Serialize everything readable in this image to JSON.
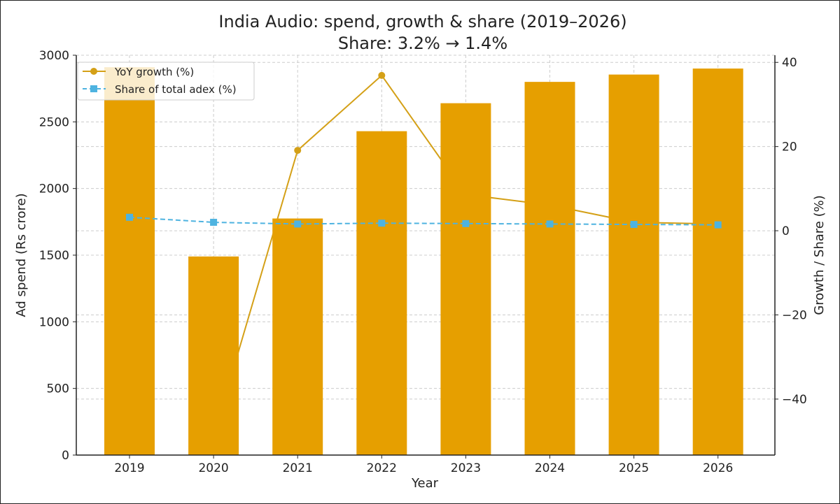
{
  "chart_data": {
    "type": "bar",
    "title": "India Audio: spend, growth & share (2019–2026)",
    "subtitle": "Share: 3.2% → 1.4%",
    "xlabel": "Year",
    "ylabel": "Ad spend (Rs crore)",
    "y2label": "Growth / Share (%)",
    "categories": [
      "2019",
      "2020",
      "2021",
      "2022",
      "2023",
      "2024",
      "2025",
      "2026"
    ],
    "ylim": [
      0,
      3000
    ],
    "y2lim": [
      -53.3,
      41.7
    ],
    "yticks": [
      0,
      500,
      1000,
      1500,
      2000,
      2500,
      3000
    ],
    "y2ticks": [
      -40,
      -20,
      0,
      20,
      40
    ],
    "grid": true,
    "legend_position": "top-left",
    "series": [
      {
        "type": "bar",
        "axis": "left",
        "values": [
          2910,
          1490,
          1775,
          2430,
          2640,
          2800,
          2855,
          2900
        ],
        "color": "#E69F00"
      },
      {
        "type": "line",
        "axis": "right",
        "name": "YoY growth (%)",
        "values": [
          null,
          -48.8,
          19.1,
          36.9,
          8.6,
          6.1,
          2.0,
          1.6
        ],
        "color": "#D4A017",
        "marker": "circle",
        "dash": "solid"
      },
      {
        "type": "line",
        "axis": "right",
        "name": "Share of total adex (%)",
        "values": [
          3.2,
          2.0,
          1.6,
          1.8,
          1.7,
          1.6,
          1.5,
          1.4
        ],
        "color": "#4EB3E0",
        "marker": "square",
        "dash": "dashed"
      }
    ]
  }
}
